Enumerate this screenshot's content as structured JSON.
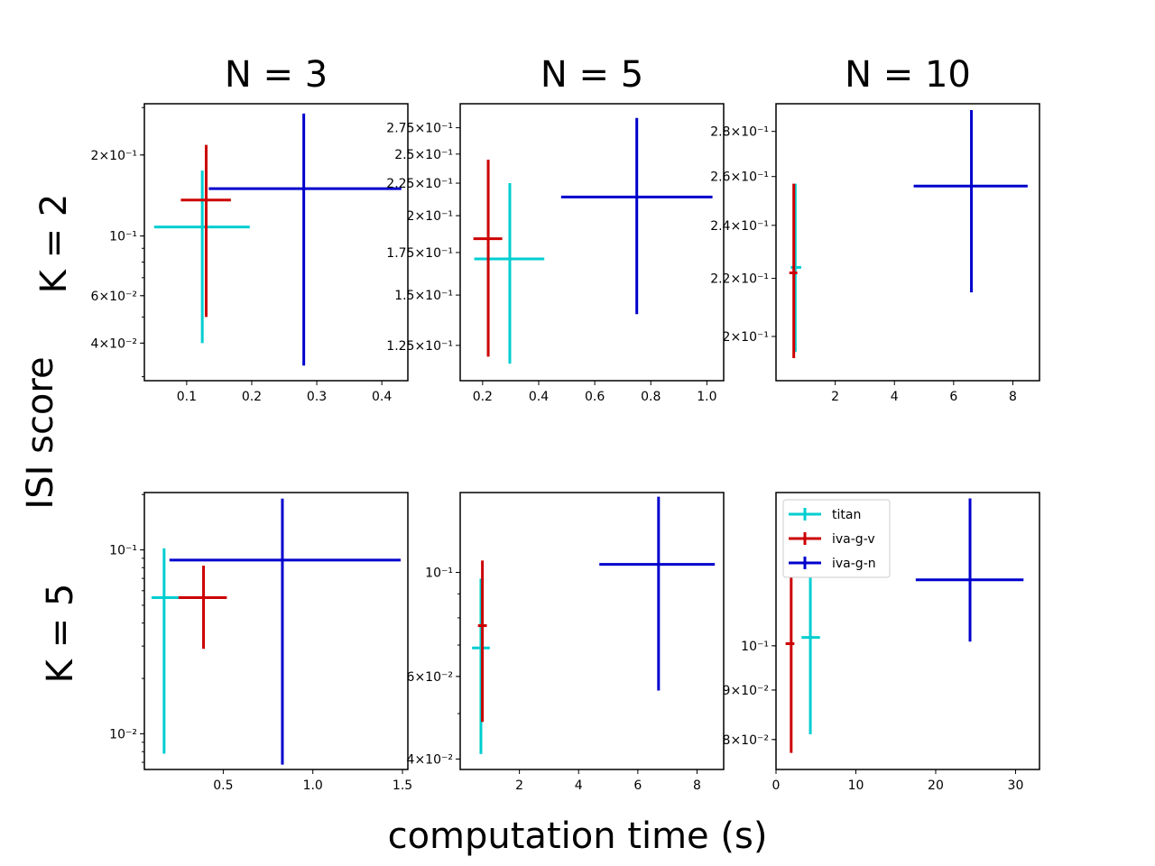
{
  "figure": {
    "xlabel": "computation time (s)",
    "ylabel": "ISI score",
    "column_titles": [
      "N = 3",
      "N = 5",
      "N = 10"
    ],
    "row_labels": [
      "K = 2",
      "K = 5"
    ]
  },
  "colors": {
    "titan": "#00CED1",
    "iva-g-v": "#CC0000",
    "iva-g-n": "#0000CD"
  },
  "legend": {
    "location": "upper-left of bottom-right panel",
    "entries": [
      {
        "label": "titan",
        "color": "#00CED1"
      },
      {
        "label": "iva-g-v",
        "color": "#CC0000"
      },
      {
        "label": "iva-g-n",
        "color": "#0000CD"
      }
    ]
  },
  "chart_data": [
    {
      "type": "scatter",
      "panel": "K = 2, N = 3",
      "yscale": "log",
      "xlim": [
        0.035,
        0.44
      ],
      "ylim": [
        0.029,
        0.31
      ],
      "xticks": [
        0.1,
        0.2,
        0.3,
        0.4
      ],
      "xtick_labels": [
        "0.1",
        "0.2",
        "0.3",
        "0.4"
      ],
      "yticks": [
        0.2,
        0.1,
        0.06,
        0.04
      ],
      "ytick_labels": [
        "2×10⁻¹",
        "10⁻¹",
        "6×10⁻²",
        "4×10⁻²"
      ],
      "series": [
        {
          "name": "titan",
          "x": 0.124,
          "y": 0.108,
          "xerr": [
            0.05,
            0.197
          ],
          "yerr": [
            0.04,
            0.175
          ]
        },
        {
          "name": "iva-g-v",
          "x": 0.13,
          "y": 0.136,
          "xerr": [
            0.091,
            0.168
          ],
          "yerr": [
            0.05,
            0.218
          ]
        },
        {
          "name": "iva-g-n",
          "x": 0.28,
          "y": 0.15,
          "xerr": [
            0.134,
            0.43
          ],
          "yerr": [
            0.033,
            0.285
          ]
        }
      ]
    },
    {
      "type": "scatter",
      "panel": "K = 2, N = 5",
      "yscale": "log",
      "xlim": [
        0.12,
        1.06
      ],
      "ylim": [
        0.11,
        0.3
      ],
      "xticks": [
        0.2,
        0.4,
        0.6,
        0.8,
        1.0
      ],
      "xtick_labels": [
        "0.2",
        "0.4",
        "0.6",
        "0.8",
        "1.0"
      ],
      "yticks": [
        0.275,
        0.25,
        0.225,
        0.2,
        0.175,
        0.15,
        0.125
      ],
      "ytick_labels": [
        "2.75×10⁻¹",
        "2.5×10⁻¹",
        "2.25×10⁻¹",
        "2×10⁻¹",
        "1.75×10⁻¹",
        "1.5×10⁻¹",
        "1.25×10⁻¹"
      ],
      "series": [
        {
          "name": "titan",
          "x": 0.297,
          "y": 0.171,
          "xerr": [
            0.17,
            0.42
          ],
          "yerr": [
            0.117,
            0.225
          ]
        },
        {
          "name": "iva-g-v",
          "x": 0.22,
          "y": 0.184,
          "xerr": [
            0.167,
            0.27
          ],
          "yerr": [
            0.12,
            0.245
          ]
        },
        {
          "name": "iva-g-n",
          "x": 0.75,
          "y": 0.214,
          "xerr": [
            0.48,
            1.02
          ],
          "yerr": [
            0.14,
            0.285
          ]
        }
      ]
    },
    {
      "type": "scatter",
      "panel": "K = 2, N = 10",
      "yscale": "log",
      "xlim": [
        0.0,
        8.9
      ],
      "ylim": [
        0.186,
        0.293
      ],
      "xticks": [
        2,
        4,
        6,
        8
      ],
      "xtick_labels": [
        "2",
        "4",
        "6",
        "8"
      ],
      "yticks": [
        0.28,
        0.26,
        0.24,
        0.22,
        0.2
      ],
      "ytick_labels": [
        "2.8×10⁻¹",
        "2.6×10⁻¹",
        "2.4×10⁻¹",
        "2.2×10⁻¹",
        "2×10⁻¹"
      ],
      "series": [
        {
          "name": "titan",
          "x": 0.65,
          "y": 0.224,
          "xerr": [
            0.5,
            0.85
          ],
          "yerr": [
            0.195,
            0.257
          ]
        },
        {
          "name": "iva-g-v",
          "x": 0.6,
          "y": 0.222,
          "xerr": [
            0.45,
            0.72
          ],
          "yerr": [
            0.193,
            0.257
          ]
        },
        {
          "name": "iva-g-n",
          "x": 6.6,
          "y": 0.256,
          "xerr": [
            4.65,
            8.5
          ],
          "yerr": [
            0.215,
            0.29
          ]
        }
      ]
    },
    {
      "type": "scatter",
      "panel": "K = 5, N = 3",
      "yscale": "log",
      "xlim": [
        0.06,
        1.53
      ],
      "ylim": [
        0.0064,
        0.205
      ],
      "xticks": [
        0.5,
        1.0,
        1.5
      ],
      "xtick_labels": [
        "0.5",
        "1.0",
        "1.5"
      ],
      "yticks": [
        0.1,
        0.01
      ],
      "ytick_labels": [
        "10⁻¹",
        "10⁻²"
      ],
      "series": [
        {
          "name": "titan",
          "x": 0.17,
          "y": 0.055,
          "xerr": [
            0.1,
            0.25
          ],
          "yerr": [
            0.0078,
            0.102
          ]
        },
        {
          "name": "iva-g-v",
          "x": 0.39,
          "y": 0.055,
          "xerr": [
            0.25,
            0.52
          ],
          "yerr": [
            0.029,
            0.082
          ]
        },
        {
          "name": "iva-g-n",
          "x": 0.83,
          "y": 0.088,
          "xerr": [
            0.2,
            1.49
          ],
          "yerr": [
            0.0068,
            0.19
          ]
        }
      ]
    },
    {
      "type": "scatter",
      "panel": "K = 5, N = 5",
      "yscale": "log",
      "xlim": [
        0.0,
        8.9
      ],
      "ylim": [
        0.038,
        0.148
      ],
      "xticks": [
        2,
        4,
        6,
        8
      ],
      "xtick_labels": [
        "2",
        "4",
        "6",
        "8"
      ],
      "yticks": [
        0.1,
        0.06,
        0.04
      ],
      "ytick_labels": [
        "10⁻¹",
        "6×10⁻²",
        "4×10⁻²"
      ],
      "series": [
        {
          "name": "titan",
          "x": 0.7,
          "y": 0.069,
          "xerr": [
            0.4,
            1.0
          ],
          "yerr": [
            0.041,
            0.097
          ]
        },
        {
          "name": "iva-g-v",
          "x": 0.75,
          "y": 0.077,
          "xerr": [
            0.6,
            0.9
          ],
          "yerr": [
            0.048,
            0.106
          ]
        },
        {
          "name": "iva-g-n",
          "x": 6.7,
          "y": 0.104,
          "xerr": [
            4.7,
            8.6
          ],
          "yerr": [
            0.056,
            0.145
          ]
        }
      ]
    },
    {
      "type": "scatter",
      "panel": "K = 5, N = 10",
      "yscale": "log",
      "xlim": [
        0.0,
        33.0
      ],
      "ylim": [
        0.0745,
        0.144
      ],
      "xticks": [
        0,
        10,
        20,
        30
      ],
      "xtick_labels": [
        "0",
        "10",
        "20",
        "30"
      ],
      "yticks": [
        0.1,
        0.09,
        0.08
      ],
      "ytick_labels": [
        "10⁻¹",
        "9×10⁻²",
        "8×10⁻²"
      ],
      "series": [
        {
          "name": "titan",
          "x": 4.3,
          "y": 0.102,
          "xerr": [
            3.2,
            5.5
          ],
          "yerr": [
            0.081,
            0.119
          ]
        },
        {
          "name": "iva-g-v",
          "x": 1.9,
          "y": 0.1005,
          "xerr": [
            1.2,
            2.3
          ],
          "yerr": [
            0.0775,
            0.118
          ]
        },
        {
          "name": "iva-g-n",
          "x": 24.3,
          "y": 0.117,
          "xerr": [
            17.5,
            31.0
          ],
          "yerr": [
            0.101,
            0.142
          ]
        }
      ]
    }
  ]
}
